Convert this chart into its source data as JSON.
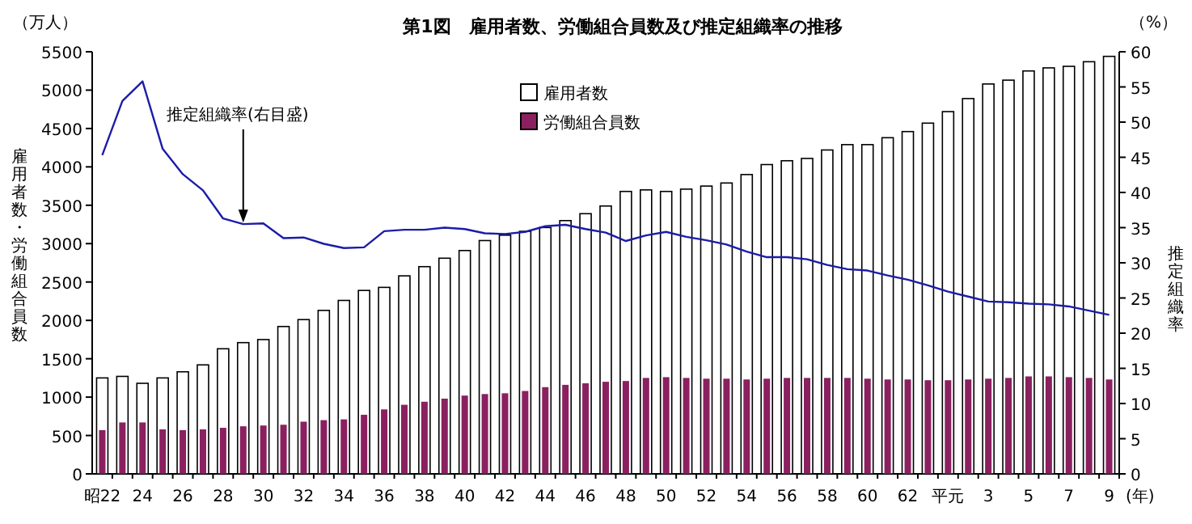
{
  "chart_data": {
    "type": "bar",
    "title": "第1図　雇用者数、労働組合員数及び推定組織率の推移",
    "xlabel": "(年)",
    "ylabel": "雇用者数・労働組合員数",
    "y2label": "推定組織率",
    "annotations": [
      "（万人）",
      "（%）"
    ],
    "categories": [
      "昭22",
      null,
      "24",
      null,
      "26",
      null,
      "28",
      null,
      "30",
      null,
      "32",
      null,
      "34",
      null,
      "36",
      null,
      "38",
      null,
      "40",
      null,
      "42",
      null,
      "44",
      null,
      "46",
      null,
      "48",
      null,
      "50",
      null,
      "52",
      null,
      "54",
      null,
      "56",
      null,
      "58",
      null,
      "60",
      null,
      "62",
      null,
      "平元",
      null,
      "3",
      null,
      "5",
      null,
      "7",
      null,
      "9"
    ],
    "series": [
      {
        "name": "雇用者数",
        "color": "#ffffff",
        "values": [
          1250,
          1270,
          1180,
          1250,
          1330,
          1420,
          1630,
          1710,
          1750,
          1920,
          2010,
          2130,
          2260,
          2390,
          2430,
          2580,
          2700,
          2810,
          2910,
          3040,
          3110,
          3160,
          3210,
          3300,
          3390,
          3490,
          3680,
          3700,
          3680,
          3710,
          3750,
          3790,
          3900,
          4030,
          4080,
          4110,
          4220,
          4290,
          4290,
          4380,
          4460,
          4570,
          4720,
          4890,
          5080,
          5130,
          5250,
          5290,
          5310,
          5370,
          5440
        ]
      },
      {
        "name": "労働組合員数",
        "color": "#8b2060",
        "values": [
          570,
          670,
          670,
          580,
          570,
          580,
          600,
          620,
          630,
          640,
          680,
          700,
          710,
          770,
          840,
          900,
          940,
          980,
          1020,
          1040,
          1050,
          1080,
          1130,
          1160,
          1180,
          1200,
          1210,
          1250,
          1260,
          1250,
          1240,
          1240,
          1230,
          1240,
          1250,
          1250,
          1250,
          1250,
          1240,
          1230,
          1230,
          1220,
          1220,
          1230,
          1240,
          1250,
          1270,
          1270,
          1260,
          1250,
          1230
        ]
      },
      {
        "name": "推定組織率(右目盛)",
        "type": "line",
        "axis": "y2",
        "color": "#1c1ca8",
        "values": [
          45.3,
          53.0,
          55.8,
          46.2,
          42.6,
          40.3,
          36.3,
          35.5,
          35.6,
          33.5,
          33.6,
          32.7,
          32.1,
          32.2,
          34.5,
          34.7,
          34.7,
          35.0,
          34.8,
          34.2,
          34.1,
          34.4,
          35.2,
          35.4,
          34.8,
          34.3,
          33.1,
          33.9,
          34.4,
          33.7,
          33.2,
          32.6,
          31.6,
          30.8,
          30.8,
          30.5,
          29.7,
          29.1,
          28.9,
          28.2,
          27.6,
          26.8,
          25.9,
          25.2,
          24.5,
          24.4,
          24.2,
          24.1,
          23.8,
          23.2,
          22.6
        ]
      }
    ],
    "ylim": [
      0,
      5500
    ],
    "yticks": [
      0,
      500,
      1000,
      1500,
      2000,
      2500,
      3000,
      3500,
      4000,
      4500,
      5000,
      5500
    ],
    "y2lim": [
      0,
      60
    ],
    "y2ticks": [
      0,
      5,
      10,
      15,
      20,
      25,
      30,
      35,
      40,
      45,
      50,
      55,
      60
    ],
    "legend": "top"
  }
}
